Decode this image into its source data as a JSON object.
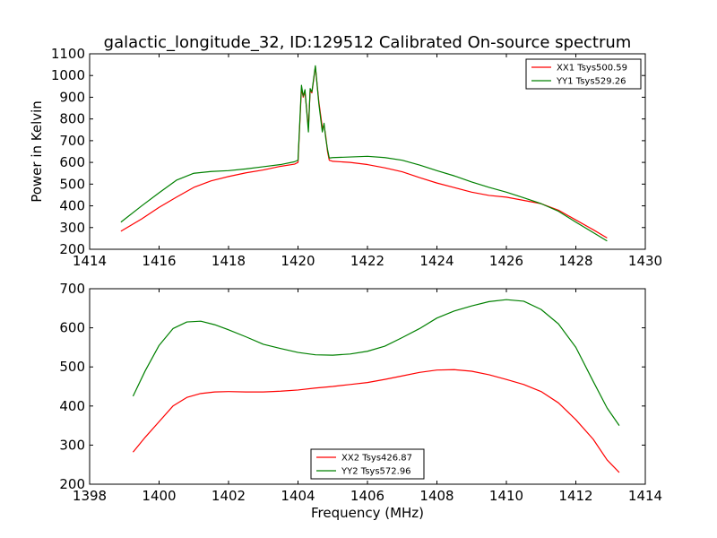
{
  "figure": {
    "title": "galactic_longitude_32, ID:129512 Calibrated On-source spectrum"
  },
  "chart_data": [
    {
      "type": "line",
      "title": "galactic_longitude_32, ID:129512 Calibrated On-source spectrum",
      "xlabel": "",
      "ylabel": "Power in Kelvin",
      "xlim": [
        1414,
        1430
      ],
      "ylim": [
        200,
        1100
      ],
      "xticks": [
        1414,
        1416,
        1418,
        1420,
        1422,
        1424,
        1426,
        1428,
        1430
      ],
      "yticks": [
        200,
        300,
        400,
        500,
        600,
        700,
        800,
        900,
        1000,
        1100
      ],
      "grid": false,
      "legend_position": "top-right",
      "series": [
        {
          "name": "XX1 Tsys500.59",
          "color": "#ff0000",
          "points": [
            [
              1414.9,
              283
            ],
            [
              1415.5,
              340
            ],
            [
              1416.0,
              393
            ],
            [
              1416.5,
              440
            ],
            [
              1417.0,
              485
            ],
            [
              1417.5,
              515
            ],
            [
              1418.0,
              535
            ],
            [
              1418.5,
              552
            ],
            [
              1419.0,
              565
            ],
            [
              1419.5,
              582
            ],
            [
              1419.9,
              592
            ],
            [
              1420.0,
              600
            ],
            [
              1420.1,
              940
            ],
            [
              1420.15,
              900
            ],
            [
              1420.2,
              925
            ],
            [
              1420.3,
              760
            ],
            [
              1420.35,
              930
            ],
            [
              1420.4,
              920
            ],
            [
              1420.5,
              1040
            ],
            [
              1420.6,
              880
            ],
            [
              1420.7,
              760
            ],
            [
              1420.75,
              770
            ],
            [
              1420.8,
              720
            ],
            [
              1420.85,
              650
            ],
            [
              1420.9,
              610
            ],
            [
              1421.0,
              605
            ],
            [
              1421.5,
              600
            ],
            [
              1422.0,
              590
            ],
            [
              1422.5,
              575
            ],
            [
              1423.0,
              557
            ],
            [
              1423.5,
              530
            ],
            [
              1424.0,
              505
            ],
            [
              1424.5,
              484
            ],
            [
              1425.0,
              463
            ],
            [
              1425.5,
              448
            ],
            [
              1426.0,
              440
            ],
            [
              1426.5,
              425
            ],
            [
              1427.0,
              410
            ],
            [
              1427.5,
              380
            ],
            [
              1428.0,
              335
            ],
            [
              1428.5,
              290
            ],
            [
              1428.9,
              252
            ]
          ]
        },
        {
          "name": "YY1 Tsys529.26",
          "color": "#008000",
          "points": [
            [
              1414.9,
              325
            ],
            [
              1415.5,
              400
            ],
            [
              1416.0,
              460
            ],
            [
              1416.5,
              518
            ],
            [
              1417.0,
              550
            ],
            [
              1417.5,
              558
            ],
            [
              1418.0,
              562
            ],
            [
              1418.5,
              570
            ],
            [
              1419.0,
              580
            ],
            [
              1419.5,
              590
            ],
            [
              1419.9,
              603
            ],
            [
              1420.0,
              610
            ],
            [
              1420.1,
              955
            ],
            [
              1420.15,
              905
            ],
            [
              1420.2,
              935
            ],
            [
              1420.3,
              740
            ],
            [
              1420.35,
              940
            ],
            [
              1420.4,
              925
            ],
            [
              1420.5,
              1045
            ],
            [
              1420.6,
              870
            ],
            [
              1420.7,
              740
            ],
            [
              1420.75,
              780
            ],
            [
              1420.8,
              710
            ],
            [
              1420.85,
              660
            ],
            [
              1420.9,
              620
            ],
            [
              1421.0,
              622
            ],
            [
              1421.5,
              625
            ],
            [
              1422.0,
              628
            ],
            [
              1422.5,
              622
            ],
            [
              1423.0,
              610
            ],
            [
              1423.5,
              588
            ],
            [
              1424.0,
              562
            ],
            [
              1424.5,
              538
            ],
            [
              1425.0,
              510
            ],
            [
              1425.5,
              485
            ],
            [
              1426.0,
              463
            ],
            [
              1426.5,
              437
            ],
            [
              1427.0,
              410
            ],
            [
              1427.5,
              375
            ],
            [
              1428.0,
              325
            ],
            [
              1428.5,
              277
            ],
            [
              1428.9,
              238
            ]
          ]
        }
      ]
    },
    {
      "type": "line",
      "title": "",
      "xlabel": "Frequency (MHz)",
      "ylabel": "",
      "xlim": [
        1398,
        1414
      ],
      "ylim": [
        200,
        700
      ],
      "xticks": [
        1398,
        1400,
        1402,
        1404,
        1406,
        1408,
        1410,
        1412,
        1414
      ],
      "yticks": [
        200,
        300,
        400,
        500,
        600,
        700
      ],
      "grid": false,
      "legend_position": "bottom-center",
      "series": [
        {
          "name": "XX2 Tsys426.87",
          "color": "#ff0000",
          "points": [
            [
              1399.25,
              282
            ],
            [
              1399.6,
              320
            ],
            [
              1400.0,
              360
            ],
            [
              1400.4,
              400
            ],
            [
              1400.8,
              422
            ],
            [
              1401.2,
              432
            ],
            [
              1401.6,
              436
            ],
            [
              1402.0,
              437
            ],
            [
              1402.5,
              436
            ],
            [
              1403.0,
              436
            ],
            [
              1403.5,
              438
            ],
            [
              1404.0,
              441
            ],
            [
              1404.5,
              446
            ],
            [
              1405.0,
              450
            ],
            [
              1405.5,
              455
            ],
            [
              1406.0,
              460
            ],
            [
              1406.5,
              468
            ],
            [
              1407.0,
              477
            ],
            [
              1407.5,
              486
            ],
            [
              1408.0,
              492
            ],
            [
              1408.5,
              493
            ],
            [
              1409.0,
              489
            ],
            [
              1409.5,
              480
            ],
            [
              1410.0,
              468
            ],
            [
              1410.5,
              455
            ],
            [
              1411.0,
              437
            ],
            [
              1411.5,
              408
            ],
            [
              1412.0,
              365
            ],
            [
              1412.5,
              315
            ],
            [
              1412.9,
              262
            ],
            [
              1413.25,
              230
            ]
          ]
        },
        {
          "name": "YY2 Tsys572.96",
          "color": "#008000",
          "points": [
            [
              1399.25,
              425
            ],
            [
              1399.6,
              490
            ],
            [
              1400.0,
              555
            ],
            [
              1400.4,
              598
            ],
            [
              1400.8,
              615
            ],
            [
              1401.2,
              617
            ],
            [
              1401.6,
              608
            ],
            [
              1402.0,
              595
            ],
            [
              1402.5,
              577
            ],
            [
              1403.0,
              558
            ],
            [
              1403.5,
              547
            ],
            [
              1404.0,
              537
            ],
            [
              1404.5,
              531
            ],
            [
              1405.0,
              530
            ],
            [
              1405.5,
              533
            ],
            [
              1406.0,
              540
            ],
            [
              1406.5,
              553
            ],
            [
              1407.0,
              575
            ],
            [
              1407.5,
              598
            ],
            [
              1408.0,
              625
            ],
            [
              1408.5,
              643
            ],
            [
              1409.0,
              656
            ],
            [
              1409.5,
              667
            ],
            [
              1410.0,
              672
            ],
            [
              1410.5,
              668
            ],
            [
              1411.0,
              647
            ],
            [
              1411.5,
              610
            ],
            [
              1412.0,
              550
            ],
            [
              1412.5,
              463
            ],
            [
              1412.9,
              395
            ],
            [
              1413.25,
              350
            ]
          ]
        }
      ]
    }
  ]
}
